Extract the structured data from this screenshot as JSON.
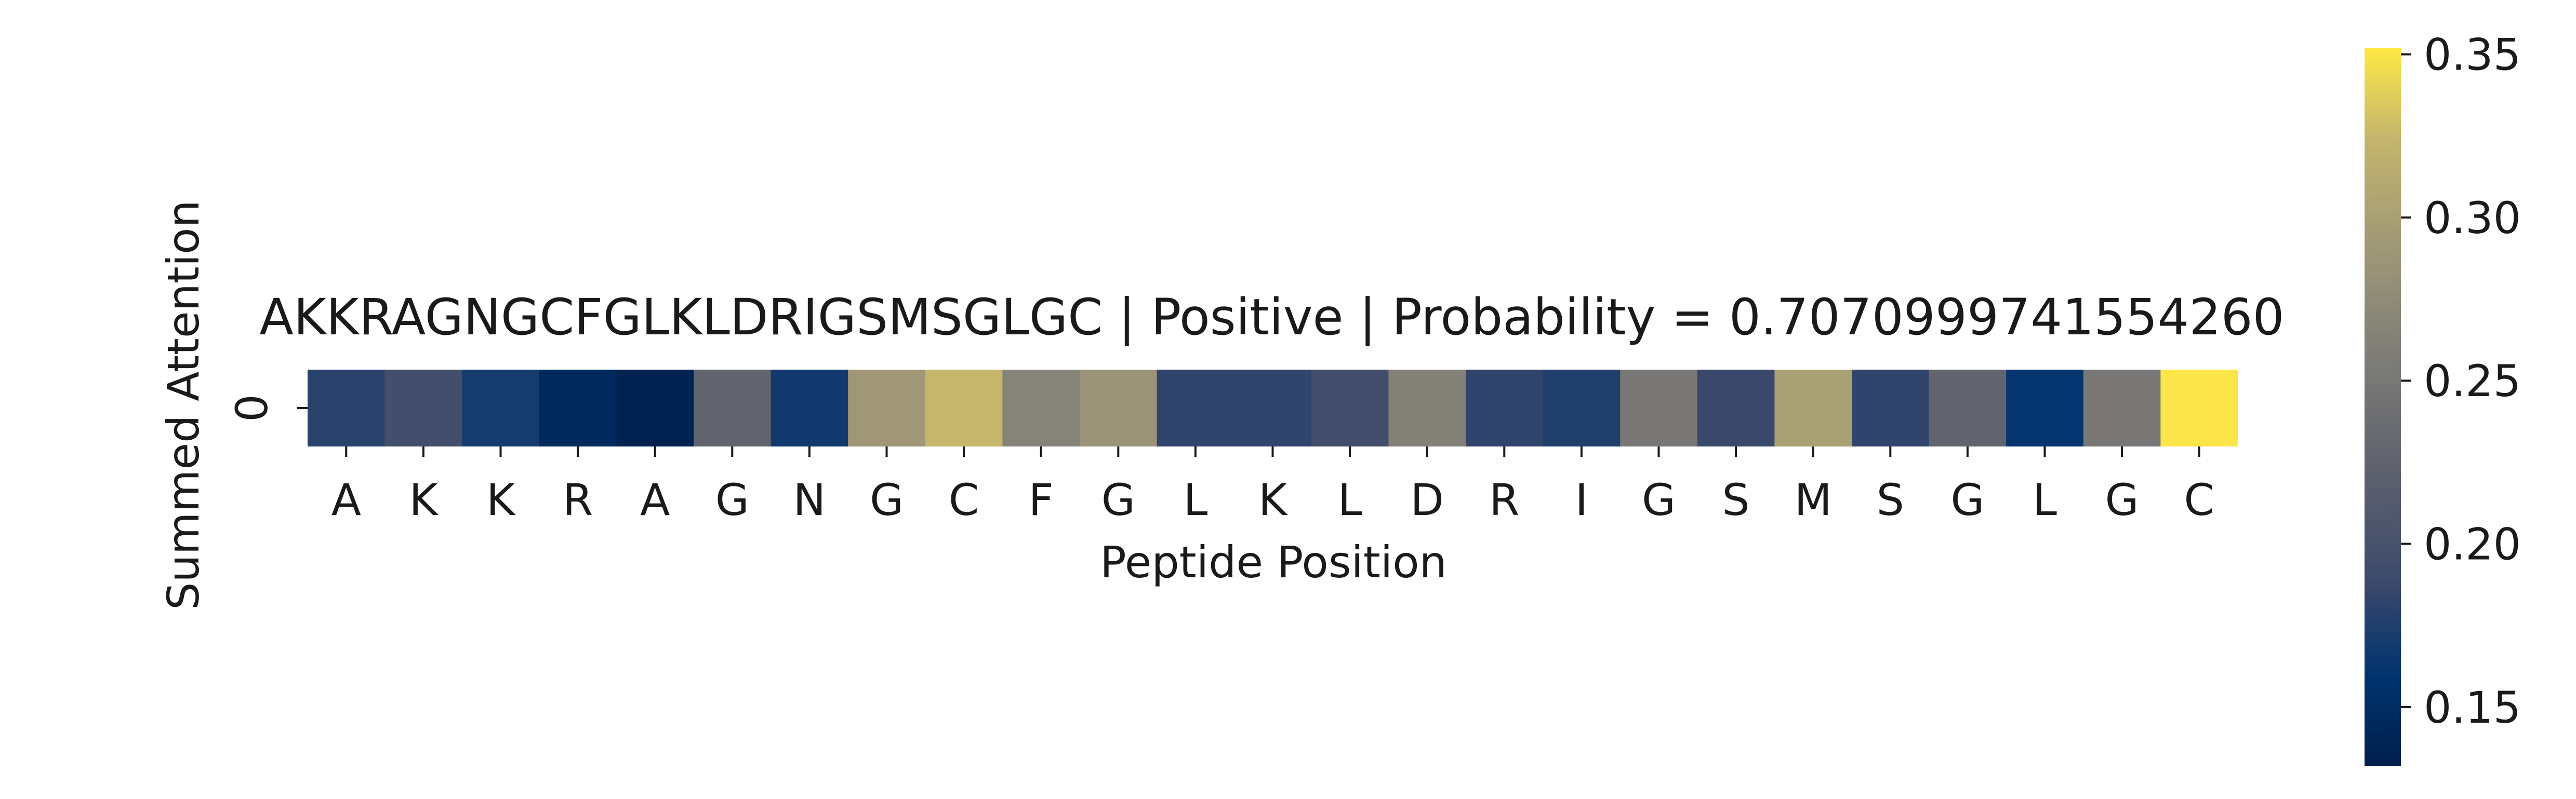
{
  "chart_data": {
    "type": "heatmap",
    "title": "AKKRAGNGCFGLKLDRIGSMSGLGC | Positive | Probability = 0.7070999741554260",
    "xlabel": "Peptide Position",
    "ylabel": "Summed Attention",
    "y_categories": [
      "0"
    ],
    "x_categories": [
      "A",
      "K",
      "K",
      "R",
      "A",
      "G",
      "N",
      "G",
      "C",
      "F",
      "G",
      "L",
      "K",
      "L",
      "D",
      "R",
      "I",
      "G",
      "S",
      "M",
      "S",
      "G",
      "L",
      "G",
      "C"
    ],
    "values": [
      [
        0.18,
        0.195,
        0.17,
        0.145,
        0.135,
        0.225,
        0.168,
        0.29,
        0.325,
        0.265,
        0.285,
        0.183,
        0.183,
        0.195,
        0.262,
        0.183,
        0.175,
        0.25,
        0.187,
        0.3,
        0.183,
        0.225,
        0.162,
        0.25,
        0.35
      ]
    ],
    "colormap": "cividis",
    "colorbar": {
      "range": [
        0.132,
        0.352
      ],
      "ticks": [
        0.15,
        0.2,
        0.25,
        0.3,
        0.35
      ],
      "tick_labels": [
        "0.15",
        "0.20",
        "0.25",
        "0.30",
        "0.35"
      ]
    },
    "grid": false,
    "legend": "none"
  }
}
